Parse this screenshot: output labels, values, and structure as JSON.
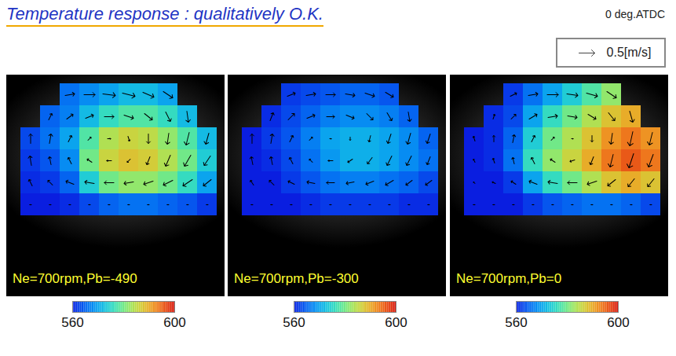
{
  "title": "Temperature response : qualitatively O.K.",
  "time_label": "0 deg.ATDC",
  "reference_vector": {
    "value": 0.5,
    "label": "0.5[m/s]"
  },
  "chart_data": [
    {
      "type": "heatmap",
      "title": "Ne=700rpm,Pb=-490",
      "tick_labels": false,
      "cells": [
        [
          null,
          null,
          566,
          568,
          570,
          572,
          572,
          570,
          null,
          null
        ],
        [
          null,
          565,
          567,
          572,
          576,
          578,
          578,
          576,
          572,
          null
        ],
        [
          563,
          566,
          570,
          578,
          584,
          586,
          585,
          582,
          578,
          572
        ],
        [
          562,
          564,
          568,
          580,
          586,
          588,
          587,
          584,
          580,
          574
        ],
        [
          561,
          562,
          565,
          574,
          580,
          582,
          582,
          580,
          576,
          570
        ],
        [
          560,
          560,
          561,
          563,
          565,
          566,
          566,
          565,
          564,
          562
        ]
      ],
      "u": [
        [
          null,
          null,
          0.3,
          0.35,
          0.4,
          0.4,
          0.35,
          0.3,
          null,
          null
        ],
        [
          null,
          0.1,
          0.2,
          0.25,
          0.3,
          0.3,
          0.25,
          0.15,
          0.05,
          null
        ],
        [
          0,
          0.05,
          0.1,
          0.1,
          0.1,
          0.05,
          0,
          -0.05,
          -0.1,
          -0.1
        ],
        [
          -0.05,
          -0.05,
          -0.1,
          -0.15,
          -0.15,
          -0.1,
          -0.1,
          -0.15,
          -0.2,
          -0.2
        ],
        [
          -0.1,
          -0.15,
          -0.25,
          -0.3,
          -0.3,
          -0.3,
          -0.3,
          -0.3,
          -0.3,
          -0.25
        ],
        [
          -0.05,
          -0.05,
          -0.05,
          -0.05,
          -0.05,
          -0.05,
          -0.05,
          -0.05,
          -0.05,
          -0.05
        ]
      ],
      "v": [
        [
          null,
          null,
          0.05,
          0,
          -0.05,
          -0.1,
          -0.15,
          -0.2,
          null,
          null
        ],
        [
          null,
          0.2,
          0.15,
          0.1,
          0,
          -0.1,
          -0.2,
          -0.3,
          -0.35,
          null
        ],
        [
          0.3,
          0.3,
          0.2,
          0.1,
          0,
          -0.15,
          -0.3,
          -0.35,
          -0.4,
          -0.35
        ],
        [
          0.3,
          0.25,
          0.2,
          0.1,
          0,
          -0.1,
          -0.25,
          -0.35,
          -0.35,
          -0.3
        ],
        [
          0.2,
          0.15,
          0.1,
          0.05,
          0,
          -0.05,
          -0.1,
          -0.15,
          -0.2,
          -0.2
        ],
        [
          0,
          0,
          0,
          0,
          0,
          0,
          0,
          0,
          0,
          0
        ]
      ],
      "colorbar": {
        "range": [
          560,
          600
        ],
        "ticks": [
          560,
          600
        ]
      }
    },
    {
      "type": "heatmap",
      "title": "Ne=700rpm,Pb=-300",
      "tick_labels": false,
      "cells": [
        [
          null,
          null,
          562,
          563,
          564,
          565,
          565,
          564,
          null,
          null
        ],
        [
          null,
          561,
          563,
          565,
          567,
          568,
          568,
          567,
          565,
          null
        ],
        [
          560,
          562,
          564,
          567,
          570,
          571,
          571,
          570,
          568,
          565
        ],
        [
          560,
          561,
          563,
          566,
          569,
          571,
          571,
          570,
          568,
          566
        ],
        [
          560,
          560,
          562,
          564,
          566,
          567,
          567,
          566,
          565,
          563
        ],
        [
          560,
          560,
          560,
          561,
          562,
          562,
          562,
          562,
          561,
          561
        ]
      ],
      "u": [
        [
          null,
          null,
          0.25,
          0.3,
          0.3,
          0.3,
          0.3,
          0.25,
          null,
          null
        ],
        [
          null,
          0.1,
          0.2,
          0.25,
          0.25,
          0.25,
          0.2,
          0.15,
          0.05,
          null
        ],
        [
          0,
          0.05,
          0.1,
          0.1,
          0.05,
          0,
          -0.05,
          -0.1,
          -0.1,
          -0.1
        ],
        [
          -0.05,
          -0.05,
          -0.1,
          -0.1,
          -0.15,
          -0.15,
          -0.15,
          -0.15,
          -0.15,
          -0.1
        ],
        [
          -0.1,
          -0.15,
          -0.2,
          -0.25,
          -0.25,
          -0.25,
          -0.25,
          -0.25,
          -0.2,
          -0.2
        ],
        [
          -0.05,
          -0.05,
          -0.05,
          -0.05,
          -0.05,
          -0.05,
          -0.05,
          -0.05,
          -0.05,
          -0.05
        ]
      ],
      "v": [
        [
          null,
          null,
          0.1,
          0.05,
          0,
          -0.05,
          -0.1,
          -0.15,
          null,
          null
        ],
        [
          null,
          0.25,
          0.2,
          0.1,
          0,
          -0.1,
          -0.2,
          -0.25,
          -0.3,
          null
        ],
        [
          0.3,
          0.3,
          0.2,
          0.1,
          0,
          -0.1,
          -0.2,
          -0.3,
          -0.35,
          -0.3
        ],
        [
          0.25,
          0.25,
          0.2,
          0.1,
          0,
          -0.1,
          -0.2,
          -0.3,
          -0.3,
          -0.25
        ],
        [
          0.15,
          0.15,
          0.1,
          0.05,
          0,
          -0.05,
          -0.1,
          -0.15,
          -0.15,
          -0.15
        ],
        [
          0,
          0,
          0,
          0,
          0,
          0,
          0,
          0,
          0,
          0
        ]
      ],
      "colorbar": {
        "range": [
          560,
          600
        ],
        "ticks": [
          560,
          600
        ]
      }
    },
    {
      "type": "heatmap",
      "title": "Ne=700rpm,Pb=0",
      "tick_labels": false,
      "cells": [
        [
          null,
          null,
          562,
          566,
          570,
          574,
          578,
          582,
          null,
          null
        ],
        [
          null,
          561,
          563,
          570,
          576,
          580,
          584,
          588,
          590,
          null
        ],
        [
          560,
          561,
          565,
          574,
          580,
          584,
          588,
          592,
          594,
          592
        ],
        [
          560,
          561,
          566,
          576,
          582,
          586,
          590,
          594,
          596,
          594
        ],
        [
          560,
          560,
          562,
          570,
          576,
          580,
          584,
          588,
          590,
          588
        ],
        [
          560,
          560,
          560,
          562,
          564,
          565,
          566,
          566,
          565,
          563
        ]
      ],
      "u": [
        [
          null,
          null,
          0.2,
          0.3,
          0.35,
          0.35,
          0.35,
          0.3,
          null,
          null
        ],
        [
          null,
          0.05,
          0.15,
          0.25,
          0.3,
          0.3,
          0.25,
          0.2,
          0.1,
          null
        ],
        [
          -0.05,
          0,
          0.05,
          0.1,
          0.1,
          0.05,
          0,
          -0.05,
          -0.1,
          -0.1
        ],
        [
          -0.05,
          -0.05,
          -0.05,
          -0.1,
          -0.15,
          -0.15,
          -0.1,
          -0.1,
          -0.15,
          -0.15
        ],
        [
          -0.05,
          -0.1,
          -0.15,
          -0.25,
          -0.3,
          -0.3,
          -0.3,
          -0.25,
          -0.2,
          -0.2
        ],
        [
          -0.05,
          -0.05,
          -0.05,
          -0.05,
          -0.05,
          -0.05,
          -0.05,
          -0.05,
          -0.05,
          -0.05
        ]
      ],
      "v": [
        [
          null,
          null,
          0.1,
          0.05,
          0,
          -0.05,
          -0.1,
          -0.2,
          null,
          null
        ],
        [
          null,
          0.15,
          0.15,
          0.15,
          0.05,
          -0.05,
          -0.15,
          -0.25,
          -0.35,
          null
        ],
        [
          0.15,
          0.2,
          0.25,
          0.2,
          0.1,
          0,
          -0.2,
          -0.35,
          -0.45,
          -0.4
        ],
        [
          0.1,
          0.15,
          0.2,
          0.2,
          0.1,
          -0.05,
          -0.25,
          -0.4,
          -0.45,
          -0.4
        ],
        [
          0.05,
          0.05,
          0.1,
          0.1,
          0.05,
          0,
          -0.1,
          -0.2,
          -0.25,
          -0.25
        ],
        [
          0,
          0,
          0,
          0,
          0,
          0,
          0,
          0,
          0,
          0
        ]
      ],
      "colorbar": {
        "range": [
          560,
          600
        ],
        "ticks": [
          560,
          600
        ]
      }
    }
  ]
}
